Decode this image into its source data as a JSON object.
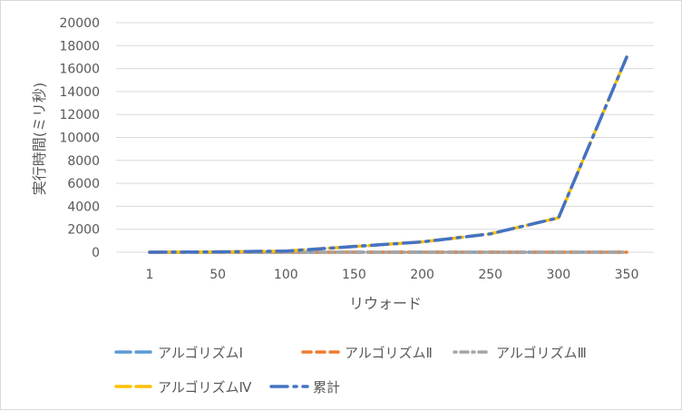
{
  "chart_data": {
    "type": "line",
    "title": "",
    "xlabel": "リウォード",
    "ylabel": "実行時間(ミリ秒)",
    "x": [
      1,
      50,
      100,
      150,
      200,
      250,
      300,
      350
    ],
    "x_ticks": [
      "1",
      "50",
      "100",
      "150",
      "200",
      "250",
      "300",
      "350"
    ],
    "y_ticks": [
      "0",
      "2000",
      "4000",
      "6000",
      "8000",
      "10000",
      "12000",
      "14000",
      "16000",
      "18000",
      "20000"
    ],
    "ylim": [
      0,
      20000
    ],
    "grid": true,
    "legend_position": "bottom",
    "series": [
      {
        "name": "アルゴリズムⅠ",
        "color": "#5b9bd5",
        "dash": "long-dash",
        "values": [
          0,
          0,
          0,
          0,
          0,
          0,
          0,
          0
        ]
      },
      {
        "name": "アルゴリズムⅡ",
        "color": "#ed7d31",
        "dash": "dash",
        "values": [
          0,
          0,
          0,
          0,
          0,
          0,
          0,
          0
        ]
      },
      {
        "name": "アルゴリズムⅢ",
        "color": "#a5a5a5",
        "dash": "dot-dash",
        "values": [
          0,
          0,
          0,
          0,
          0,
          0,
          0,
          0
        ]
      },
      {
        "name": "アルゴリズムⅣ",
        "color": "#ffc000",
        "dash": "long-dash",
        "values": [
          0,
          30,
          100,
          500,
          900,
          1600,
          3000,
          17000
        ]
      },
      {
        "name": "累計",
        "color": "#4472c4",
        "dash": "long-dash-dot",
        "values": [
          0,
          30,
          100,
          500,
          900,
          1600,
          3000,
          17000
        ]
      }
    ]
  }
}
